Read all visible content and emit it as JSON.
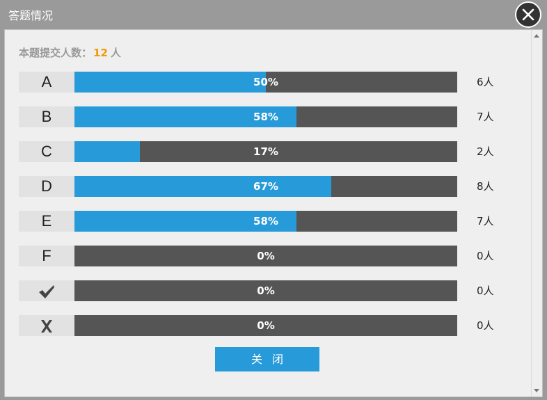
{
  "window": {
    "title": "答题情况"
  },
  "summary": {
    "label": "本题提交人数：",
    "count": "12",
    "unit": "人"
  },
  "rows": [
    {
      "option": "A",
      "icon": null,
      "fraction": 0.5,
      "percent": "50%",
      "people": "6人"
    },
    {
      "option": "B",
      "icon": null,
      "fraction": 0.58,
      "percent": "58%",
      "people": "7人"
    },
    {
      "option": "C",
      "icon": null,
      "fraction": 0.17,
      "percent": "17%",
      "people": "2人"
    },
    {
      "option": "D",
      "icon": null,
      "fraction": 0.67,
      "percent": "67%",
      "people": "8人"
    },
    {
      "option": "E",
      "icon": null,
      "fraction": 0.58,
      "percent": "58%",
      "people": "7人"
    },
    {
      "option": "F",
      "icon": null,
      "fraction": 0,
      "percent": "0%",
      "people": "0人"
    },
    {
      "option": "",
      "icon": "checkmark-icon",
      "fraction": 0,
      "percent": "0%",
      "people": "0人"
    },
    {
      "option": "",
      "icon": "cross-icon",
      "fraction": 0,
      "percent": "0%",
      "people": "0人"
    }
  ],
  "close_button": {
    "label": "关闭"
  },
  "colors": {
    "accent": "#279ad9",
    "bar_bg": "#555555",
    "count_highlight": "#f39800"
  }
}
